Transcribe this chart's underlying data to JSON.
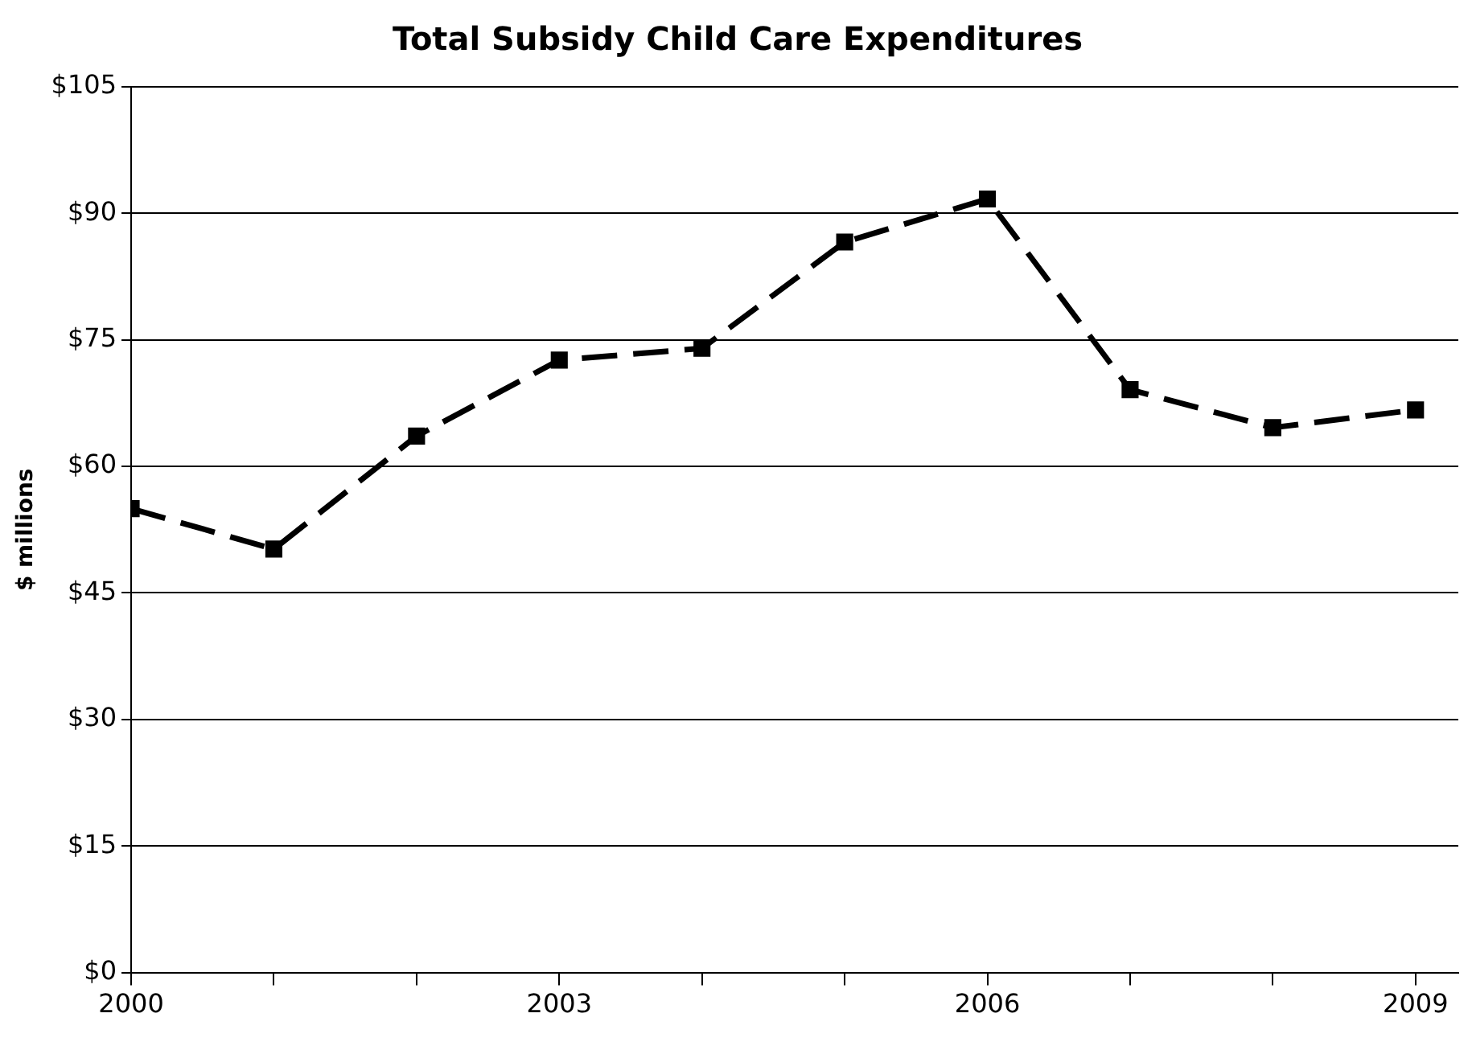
{
  "chart_data": {
    "type": "line",
    "title": "Total Subsidy Child Care Expenditures",
    "ylabel": "$ millions",
    "x": [
      2000,
      2001,
      2002,
      2003,
      2004,
      2005,
      2006,
      2007,
      2008,
      2009
    ],
    "series": [
      {
        "color": "#000000",
        "values": [
          55,
          50.2,
          63.6,
          72.6,
          74,
          86.6,
          91.7,
          69.1,
          64.6,
          66.7
        ]
      }
    ],
    "xlim": [
      2000,
      2009.3
    ],
    "xticks": [
      2000,
      {
        "value": 2001,
        "label": null
      },
      {
        "value": 2002,
        "label": null
      },
      2003,
      {
        "value": 2004,
        "label": null
      },
      {
        "value": 2005,
        "label": null
      },
      2006,
      {
        "value": 2007,
        "label": null
      },
      {
        "value": 2008,
        "label": null
      },
      2009
    ],
    "ylim": [
      0,
      105
    ],
    "yticks": [
      {
        "value": 0,
        "label": "$0"
      },
      {
        "value": 15,
        "label": "$15"
      },
      {
        "value": 30,
        "label": "$30"
      },
      {
        "value": 45,
        "label": "$45"
      },
      {
        "value": 60,
        "label": "$60"
      },
      {
        "value": 75,
        "label": "$75"
      },
      {
        "value": 90,
        "label": "$90"
      },
      {
        "value": 105,
        "label": "$105"
      }
    ],
    "grid": "y",
    "legend": false,
    "marker": "square",
    "line_style": "dashed"
  }
}
